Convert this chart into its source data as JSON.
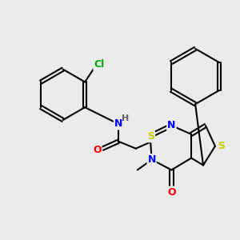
{
  "background_color": "#ebebeb",
  "bond_color": "#000000",
  "atom_colors": {
    "N": "#0000ff",
    "O": "#ff0000",
    "S": "#cccc00",
    "Cl": "#00aa00",
    "H": "#606060",
    "C": "#000000"
  },
  "figsize": [
    3.0,
    3.0
  ],
  "dpi": 100
}
